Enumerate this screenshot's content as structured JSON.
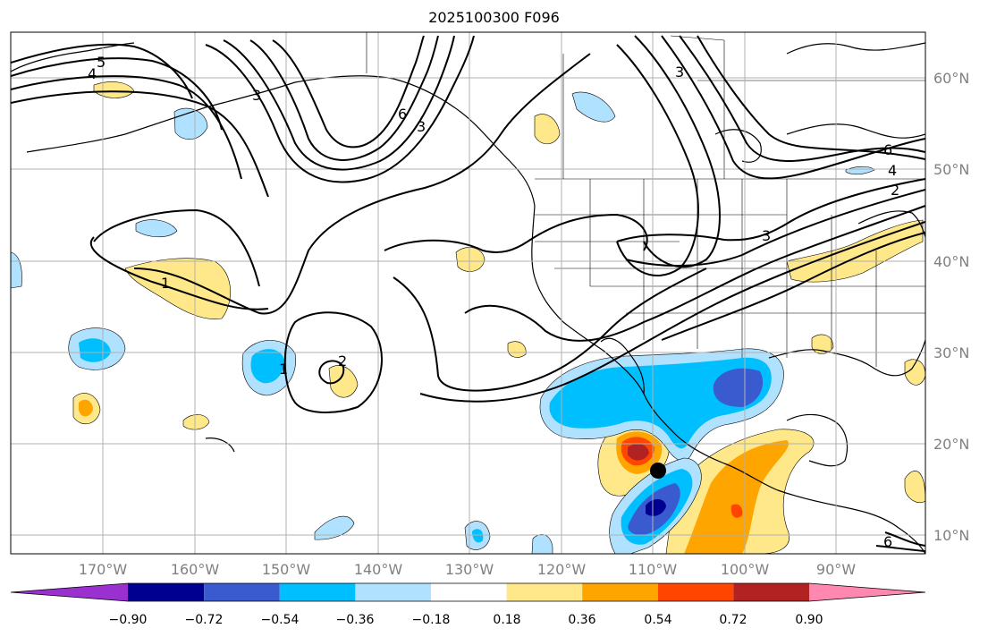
{
  "title": "2025100300 F096",
  "lat_labels": [
    "60°N",
    "50°N",
    "40°N",
    "30°N",
    "20°N",
    "10°N"
  ],
  "lon_labels": [
    "170°W",
    "160°W",
    "150°W",
    "140°W",
    "130°W",
    "120°W",
    "110°W",
    "100°W",
    "90°W"
  ],
  "colorbar": {
    "labels": [
      "−0.90",
      "−0.72",
      "−0.54",
      "−0.36",
      "−0.18",
      "0.18",
      "0.36",
      "0.54",
      "0.72",
      "0.90"
    ],
    "colors": [
      "#9b30d0",
      "#000090",
      "#3a5bd0",
      "#00bfff",
      "#b0e2ff",
      "#ffffff",
      "#ffe88a",
      "#ffa500",
      "#ff4500",
      "#b22222",
      "#ff88b0"
    ]
  },
  "contour_labels": [
    "5",
    "4",
    "6",
    "3",
    "3",
    "1",
    "1",
    "2",
    "6",
    "4",
    "2",
    "3",
    "6",
    "3"
  ],
  "colors": {
    "land_border": "#000000",
    "grid": "#b0b0b0",
    "contour": "#000000"
  }
}
